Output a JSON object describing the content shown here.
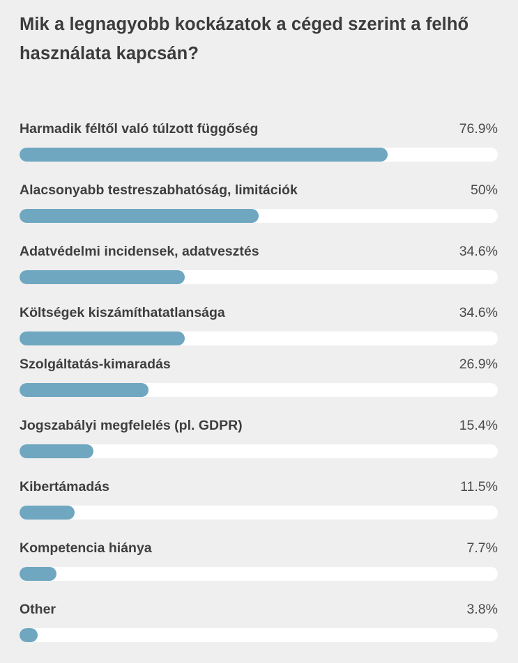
{
  "poll": {
    "title": "Mik a legnagyobb kockázatok a céged szerint a felhő használata kapcsán?"
  },
  "colors": {
    "background": "#efefef",
    "bar_fill": "#6fa7c0",
    "bar_track": "#ffffff",
    "text": "#3c3c3c"
  },
  "chart_data": {
    "type": "bar",
    "orientation": "horizontal",
    "title": "Mik a legnagyobb kockázatok a céged szerint a felhő használata kapcsán?",
    "xlim": [
      0,
      100
    ],
    "categories": [
      "Harmadik féltől való túlzott függőség",
      "Alacsonyabb testreszabhatóság, limitációk",
      "Adatvédelmi incidensek, adatvesztés",
      "Költségek kiszámíthatatlansága",
      "Szolgáltatás-kimaradás",
      "Jogszabályi megfelelés (pl. GDPR)",
      "Kibertámadás",
      "Kompetencia hiánya",
      "Other"
    ],
    "values": [
      76.9,
      50,
      34.6,
      34.6,
      26.9,
      15.4,
      11.5,
      7.7,
      3.8
    ],
    "value_labels": [
      "76.9%",
      "50%",
      "34.6%",
      "34.6%",
      "26.9%",
      "15.4%",
      "11.5%",
      "7.7%",
      "3.8%"
    ]
  }
}
